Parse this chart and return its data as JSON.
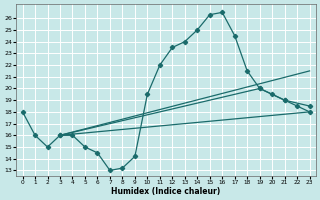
{
  "xlabel": "Humidex (Indice chaleur)",
  "xlim": [
    -0.5,
    23.5
  ],
  "ylim": [
    12.5,
    27.2
  ],
  "yticks": [
    13,
    14,
    15,
    16,
    17,
    18,
    19,
    20,
    21,
    22,
    23,
    24,
    25,
    26
  ],
  "xticks": [
    0,
    1,
    2,
    3,
    4,
    5,
    6,
    7,
    8,
    9,
    10,
    11,
    12,
    13,
    14,
    15,
    16,
    17,
    18,
    19,
    20,
    21,
    22,
    23
  ],
  "bg_color": "#c8e8e8",
  "grid_color": "#ffffff",
  "line_color": "#1a6b6b",
  "line1_x": [
    0,
    1,
    2,
    3,
    4,
    5,
    6,
    7,
    8,
    9,
    10,
    11,
    12,
    13,
    14,
    15,
    16,
    17,
    18,
    19,
    20,
    21,
    22,
    23
  ],
  "line1_y": [
    18.0,
    16.0,
    15.0,
    16.0,
    16.0,
    15.0,
    14.5,
    13.0,
    13.2,
    14.2,
    19.5,
    22.0,
    23.5,
    24.0,
    25.0,
    26.3,
    26.5,
    24.5,
    21.5,
    20.0,
    19.5,
    19.0,
    18.5,
    18.0
  ],
  "line2_x": [
    3,
    23
  ],
  "line2_y": [
    16.0,
    21.5
  ],
  "line3_x": [
    3,
    19,
    21,
    23
  ],
  "line3_y": [
    16.0,
    20.0,
    19.0,
    18.5
  ],
  "line4_x": [
    3,
    23
  ],
  "line4_y": [
    16.0,
    18.0
  ]
}
